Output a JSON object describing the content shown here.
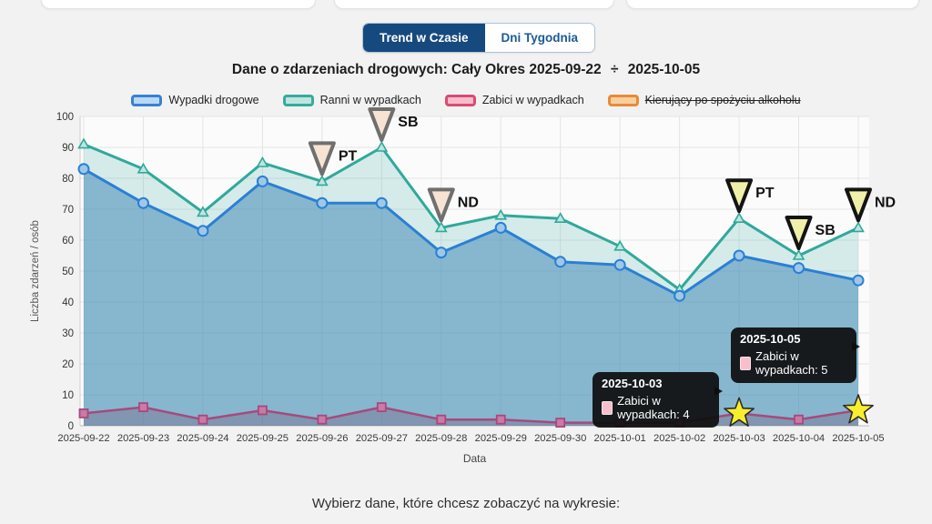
{
  "tabs": {
    "trend": "Trend w Czasie",
    "weekdays": "Dni Tygodnia"
  },
  "title": {
    "prefix": "Dane o zdarzeniach drogowych: Cały Okres",
    "date_from": "2025-09-22",
    "separator": "÷",
    "date_to": "2025-10-05"
  },
  "legend": [
    {
      "label": "Wypadki drogowe",
      "stroke": "#3a7fd6",
      "fill": "#b9d9f2",
      "disabled": false
    },
    {
      "label": "Ranni w wypadkach",
      "stroke": "#36ab9d",
      "fill": "#bfe5de",
      "disabled": false
    },
    {
      "label": "Zabici w wypadkach",
      "stroke": "#d94b74",
      "fill": "#f6bccb",
      "disabled": false
    },
    {
      "label": "Kierujący po spożyciu alkoholu",
      "stroke": "#e88a39",
      "fill": "#f8d09f",
      "disabled": true
    }
  ],
  "chart_data": {
    "type": "line",
    "title": "Dane o zdarzeniach drogowych: Cały Okres 2025-09-22 ÷ 2025-10-05",
    "xlabel": "Data",
    "ylabel": "Liczba zdarzeń / osób",
    "ylim": [
      0,
      100
    ],
    "yticks": [
      0,
      10,
      20,
      30,
      40,
      50,
      60,
      70,
      80,
      90,
      100
    ],
    "grid": true,
    "legend_position": "top",
    "x": [
      "2025-09-22",
      "2025-09-23",
      "2025-09-24",
      "2025-09-25",
      "2025-09-26",
      "2025-09-27",
      "2025-09-28",
      "2025-09-29",
      "2025-09-30",
      "2025-10-01",
      "2025-10-02",
      "2025-10-03",
      "2025-10-04",
      "2025-10-05"
    ],
    "series": [
      {
        "name": "Ranni w wypadkach",
        "marker": "triangle",
        "color": "#2fa99b",
        "marker_fill": "#bfe5de",
        "area": "rgba(47,169,155,0.18)",
        "values": [
          91,
          83,
          69,
          85,
          79,
          90,
          64,
          68,
          67,
          58,
          44,
          67,
          55,
          64
        ]
      },
      {
        "name": "Wypadki drogowe",
        "marker": "circle",
        "color": "#2b7fd4",
        "marker_fill": "#9fc8e8",
        "area": "rgba(70,140,185,0.55)",
        "values": [
          83,
          72,
          63,
          79,
          72,
          72,
          56,
          64,
          53,
          52,
          42,
          55,
          51,
          47
        ]
      },
      {
        "name": "Zabici w wypadkach",
        "marker": "square",
        "color": "#a7497e",
        "marker_fill": "#c97ba6",
        "area": "rgba(120,90,120,0.35)",
        "values": [
          4,
          6,
          2,
          5,
          2,
          6,
          2,
          2,
          1,
          1,
          1,
          4,
          2,
          5
        ]
      }
    ]
  },
  "annotations": {
    "flags": [
      {
        "date": "2025-09-26",
        "label": "PT",
        "fill": "#f7e3d4",
        "stroke": "#6f6f6f"
      },
      {
        "date": "2025-09-27",
        "label": "SB",
        "fill": "#f7e3d4",
        "stroke": "#6f6f6f"
      },
      {
        "date": "2025-09-28",
        "label": "ND",
        "fill": "#f7e3d4",
        "stroke": "#6f6f6f"
      },
      {
        "date": "2025-10-03",
        "label": "PT",
        "fill": "#f1f0a8",
        "stroke": "#141414"
      },
      {
        "date": "2025-10-04",
        "label": "SB",
        "fill": "#f1f0a8",
        "stroke": "#141414"
      },
      {
        "date": "2025-10-05",
        "label": "ND",
        "fill": "#f1f0a8",
        "stroke": "#141414"
      }
    ],
    "stars": [
      {
        "date": "2025-10-03",
        "fill": "#f9ee2e",
        "stroke": "#2a2a2a"
      },
      {
        "date": "2025-10-05",
        "fill": "#f9ee2e",
        "stroke": "#2a2a2a"
      }
    ]
  },
  "tooltips": [
    {
      "date": "2025-10-03",
      "text": "Zabici w wypadkach: 4"
    },
    {
      "date": "2025-10-05",
      "text": "Zabici w wypadkach: 5"
    }
  ],
  "footer": {
    "prompt": "Wybierz dane, które chcesz zobaczyć na wykresie:"
  }
}
